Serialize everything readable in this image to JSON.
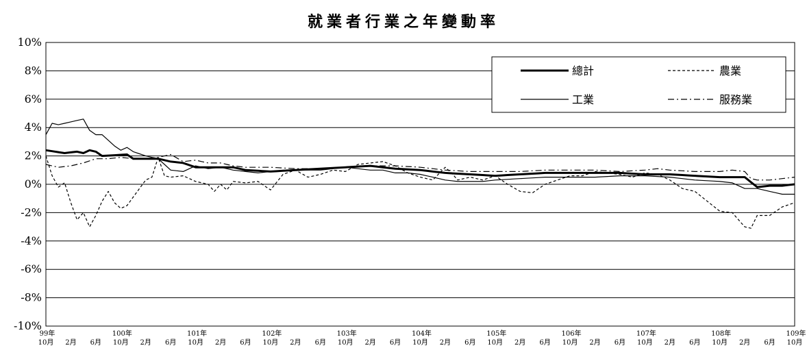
{
  "chart_data": {
    "type": "line",
    "title": "就業者行業之年變動率",
    "xlabel": "",
    "ylabel": "",
    "ylim": [
      -10,
      10
    ],
    "yticks": [
      "10%",
      "8%",
      "6%",
      "4%",
      "2%",
      "0%",
      "-2%",
      "-4%",
      "-6%",
      "-8%",
      "-10%"
    ],
    "grid": true,
    "legend_position": "top-right",
    "x_ticks": [
      {
        "i": 0,
        "top": "99年",
        "bottom": "10月"
      },
      {
        "i": 4,
        "top": "",
        "bottom": "2月"
      },
      {
        "i": 8,
        "top": "",
        "bottom": "6月"
      },
      {
        "i": 12,
        "top": "100年",
        "bottom": "10月"
      },
      {
        "i": 16,
        "top": "",
        "bottom": "2月"
      },
      {
        "i": 20,
        "top": "",
        "bottom": "6月"
      },
      {
        "i": 24,
        "top": "101年",
        "bottom": "10月"
      },
      {
        "i": 28,
        "top": "",
        "bottom": "2月"
      },
      {
        "i": 32,
        "top": "",
        "bottom": "6月"
      },
      {
        "i": 36,
        "top": "102年",
        "bottom": "10月"
      },
      {
        "i": 40,
        "top": "",
        "bottom": "2月"
      },
      {
        "i": 44,
        "top": "",
        "bottom": "6月"
      },
      {
        "i": 48,
        "top": "103年",
        "bottom": "10月"
      },
      {
        "i": 52,
        "top": "",
        "bottom": "2月"
      },
      {
        "i": 56,
        "top": "",
        "bottom": "6月"
      },
      {
        "i": 60,
        "top": "104年",
        "bottom": "10月"
      },
      {
        "i": 64,
        "top": "",
        "bottom": "2月"
      },
      {
        "i": 68,
        "top": "",
        "bottom": "6月"
      },
      {
        "i": 72,
        "top": "105年",
        "bottom": "10月"
      },
      {
        "i": 76,
        "top": "",
        "bottom": "2月"
      },
      {
        "i": 80,
        "top": "",
        "bottom": "6月"
      },
      {
        "i": 84,
        "top": "106年",
        "bottom": "10月"
      },
      {
        "i": 88,
        "top": "",
        "bottom": "2月"
      },
      {
        "i": 92,
        "top": "",
        "bottom": "6月"
      },
      {
        "i": 96,
        "top": "107年",
        "bottom": "10月"
      },
      {
        "i": 100,
        "top": "",
        "bottom": "2月"
      },
      {
        "i": 104,
        "top": "",
        "bottom": "6月"
      },
      {
        "i": 108,
        "top": "108年",
        "bottom": "10月"
      },
      {
        "i": 112,
        "top": "",
        "bottom": "2月"
      },
      {
        "i": 116,
        "top": "",
        "bottom": "6月"
      },
      {
        "i": 120,
        "top": "109年",
        "bottom": "10月"
      }
    ],
    "x_points": 121,
    "series": [
      {
        "name": "總計",
        "style": "thick",
        "color": "#000000",
        "keypoints": [
          [
            0,
            2.4
          ],
          [
            3,
            2.2
          ],
          [
            5,
            2.3
          ],
          [
            6,
            2.2
          ],
          [
            7,
            2.4
          ],
          [
            8,
            2.3
          ],
          [
            9,
            2.0
          ],
          [
            13,
            2.1
          ],
          [
            14,
            1.8
          ],
          [
            18,
            1.8
          ],
          [
            20,
            1.6
          ],
          [
            22,
            1.5
          ],
          [
            24,
            1.2
          ],
          [
            26,
            1.2
          ],
          [
            30,
            1.2
          ],
          [
            32,
            1.0
          ],
          [
            36,
            0.9
          ],
          [
            40,
            1.0
          ],
          [
            44,
            1.1
          ],
          [
            48,
            1.2
          ],
          [
            52,
            1.3
          ],
          [
            56,
            1.1
          ],
          [
            60,
            1.0
          ],
          [
            64,
            0.8
          ],
          [
            68,
            0.7
          ],
          [
            72,
            0.6
          ],
          [
            76,
            0.7
          ],
          [
            80,
            0.8
          ],
          [
            84,
            0.8
          ],
          [
            88,
            0.8
          ],
          [
            92,
            0.8
          ],
          [
            96,
            0.7
          ],
          [
            100,
            0.7
          ],
          [
            104,
            0.6
          ],
          [
            108,
            0.5
          ],
          [
            112,
            0.5
          ],
          [
            114,
            -0.2
          ],
          [
            116,
            -0.1
          ],
          [
            118,
            -0.1
          ],
          [
            120,
            0.0
          ]
        ]
      },
      {
        "name": "農業",
        "style": "dashed",
        "color": "#000000",
        "keypoints": [
          [
            0,
            2.0
          ],
          [
            1,
            0.6
          ],
          [
            2,
            -0.2
          ],
          [
            3,
            0.1
          ],
          [
            4,
            -1.3
          ],
          [
            5,
            -2.5
          ],
          [
            6,
            -2.0
          ],
          [
            7,
            -3.0
          ],
          [
            8,
            -2.2
          ],
          [
            9,
            -1.2
          ],
          [
            10,
            -0.5
          ],
          [
            11,
            -1.3
          ],
          [
            12,
            -1.7
          ],
          [
            13,
            -1.5
          ],
          [
            14,
            -0.9
          ],
          [
            15,
            -0.3
          ],
          [
            16,
            0.3
          ],
          [
            17,
            0.5
          ],
          [
            18,
            1.9
          ],
          [
            19,
            0.6
          ],
          [
            20,
            0.5
          ],
          [
            22,
            0.6
          ],
          [
            24,
            0.2
          ],
          [
            26,
            0.0
          ],
          [
            27,
            -0.5
          ],
          [
            28,
            0.0
          ],
          [
            29,
            -0.4
          ],
          [
            30,
            0.2
          ],
          [
            32,
            0.1
          ],
          [
            34,
            0.2
          ],
          [
            35,
            -0.1
          ],
          [
            36,
            -0.4
          ],
          [
            38,
            0.7
          ],
          [
            40,
            1.0
          ],
          [
            42,
            0.5
          ],
          [
            44,
            0.7
          ],
          [
            46,
            1.0
          ],
          [
            48,
            0.9
          ],
          [
            50,
            1.4
          ],
          [
            52,
            1.5
          ],
          [
            54,
            1.6
          ],
          [
            56,
            1.3
          ],
          [
            58,
            0.8
          ],
          [
            60,
            0.5
          ],
          [
            62,
            0.3
          ],
          [
            64,
            1.2
          ],
          [
            65,
            0.8
          ],
          [
            66,
            0.3
          ],
          [
            68,
            0.5
          ],
          [
            70,
            0.3
          ],
          [
            72,
            0.6
          ],
          [
            74,
            0.0
          ],
          [
            76,
            -0.5
          ],
          [
            78,
            -0.6
          ],
          [
            80,
            0.0
          ],
          [
            82,
            0.3
          ],
          [
            84,
            0.6
          ],
          [
            86,
            0.6
          ],
          [
            88,
            0.9
          ],
          [
            90,
            0.8
          ],
          [
            92,
            0.7
          ],
          [
            94,
            0.5
          ],
          [
            96,
            0.8
          ],
          [
            98,
            0.7
          ],
          [
            100,
            0.3
          ],
          [
            102,
            -0.3
          ],
          [
            104,
            -0.5
          ],
          [
            106,
            -1.2
          ],
          [
            108,
            -1.9
          ],
          [
            110,
            -2.0
          ],
          [
            112,
            -3.0
          ],
          [
            113,
            -3.1
          ],
          [
            114,
            -2.2
          ],
          [
            116,
            -2.2
          ],
          [
            118,
            -1.6
          ],
          [
            120,
            -1.3
          ]
        ]
      },
      {
        "name": "工業",
        "style": "thin",
        "color": "#000000",
        "keypoints": [
          [
            0,
            3.5
          ],
          [
            1,
            4.3
          ],
          [
            2,
            4.2
          ],
          [
            4,
            4.4
          ],
          [
            6,
            4.6
          ],
          [
            7,
            3.8
          ],
          [
            8,
            3.5
          ],
          [
            9,
            3.5
          ],
          [
            10,
            3.1
          ],
          [
            11,
            2.7
          ],
          [
            12,
            2.4
          ],
          [
            13,
            2.6
          ],
          [
            14,
            2.3
          ],
          [
            16,
            2.0
          ],
          [
            18,
            1.8
          ],
          [
            19,
            1.4
          ],
          [
            20,
            1.0
          ],
          [
            22,
            0.9
          ],
          [
            24,
            1.3
          ],
          [
            26,
            1.1
          ],
          [
            28,
            1.2
          ],
          [
            30,
            1.0
          ],
          [
            32,
            0.9
          ],
          [
            34,
            0.8
          ],
          [
            36,
            0.9
          ],
          [
            40,
            1.0
          ],
          [
            44,
            1.0
          ],
          [
            46,
            1.1
          ],
          [
            48,
            1.2
          ],
          [
            50,
            1.1
          ],
          [
            52,
            1.0
          ],
          [
            54,
            1.0
          ],
          [
            56,
            0.8
          ],
          [
            58,
            0.8
          ],
          [
            60,
            0.7
          ],
          [
            62,
            0.5
          ],
          [
            64,
            0.3
          ],
          [
            66,
            0.2
          ],
          [
            68,
            0.2
          ],
          [
            70,
            0.2
          ],
          [
            72,
            0.3
          ],
          [
            76,
            0.4
          ],
          [
            80,
            0.5
          ],
          [
            84,
            0.5
          ],
          [
            88,
            0.5
          ],
          [
            92,
            0.6
          ],
          [
            96,
            0.6
          ],
          [
            100,
            0.5
          ],
          [
            104,
            0.3
          ],
          [
            108,
            0.2
          ],
          [
            110,
            0.1
          ],
          [
            112,
            -0.3
          ],
          [
            114,
            -0.3
          ],
          [
            116,
            -0.5
          ],
          [
            118,
            -0.7
          ],
          [
            120,
            -0.7
          ]
        ]
      },
      {
        "name": "服務業",
        "style": "dashdot",
        "color": "#000000",
        "keypoints": [
          [
            0,
            1.4
          ],
          [
            2,
            1.2
          ],
          [
            4,
            1.3
          ],
          [
            6,
            1.5
          ],
          [
            8,
            1.8
          ],
          [
            10,
            1.8
          ],
          [
            12,
            1.9
          ],
          [
            14,
            1.8
          ],
          [
            16,
            1.8
          ],
          [
            18,
            1.9
          ],
          [
            20,
            2.1
          ],
          [
            22,
            1.6
          ],
          [
            24,
            1.7
          ],
          [
            26,
            1.5
          ],
          [
            28,
            1.5
          ],
          [
            30,
            1.3
          ],
          [
            32,
            1.2
          ],
          [
            36,
            1.2
          ],
          [
            40,
            1.1
          ],
          [
            44,
            1.1
          ],
          [
            48,
            1.2
          ],
          [
            52,
            1.3
          ],
          [
            56,
            1.3
          ],
          [
            60,
            1.2
          ],
          [
            64,
            1.0
          ],
          [
            68,
            0.9
          ],
          [
            72,
            0.9
          ],
          [
            76,
            0.9
          ],
          [
            80,
            1.0
          ],
          [
            84,
            1.0
          ],
          [
            88,
            1.0
          ],
          [
            92,
            0.9
          ],
          [
            96,
            1.0
          ],
          [
            98,
            1.1
          ],
          [
            100,
            1.0
          ],
          [
            104,
            0.9
          ],
          [
            108,
            0.9
          ],
          [
            110,
            1.0
          ],
          [
            112,
            0.9
          ],
          [
            113,
            0.4
          ],
          [
            114,
            0.3
          ],
          [
            116,
            0.3
          ],
          [
            118,
            0.4
          ],
          [
            120,
            0.5
          ]
        ]
      }
    ]
  }
}
